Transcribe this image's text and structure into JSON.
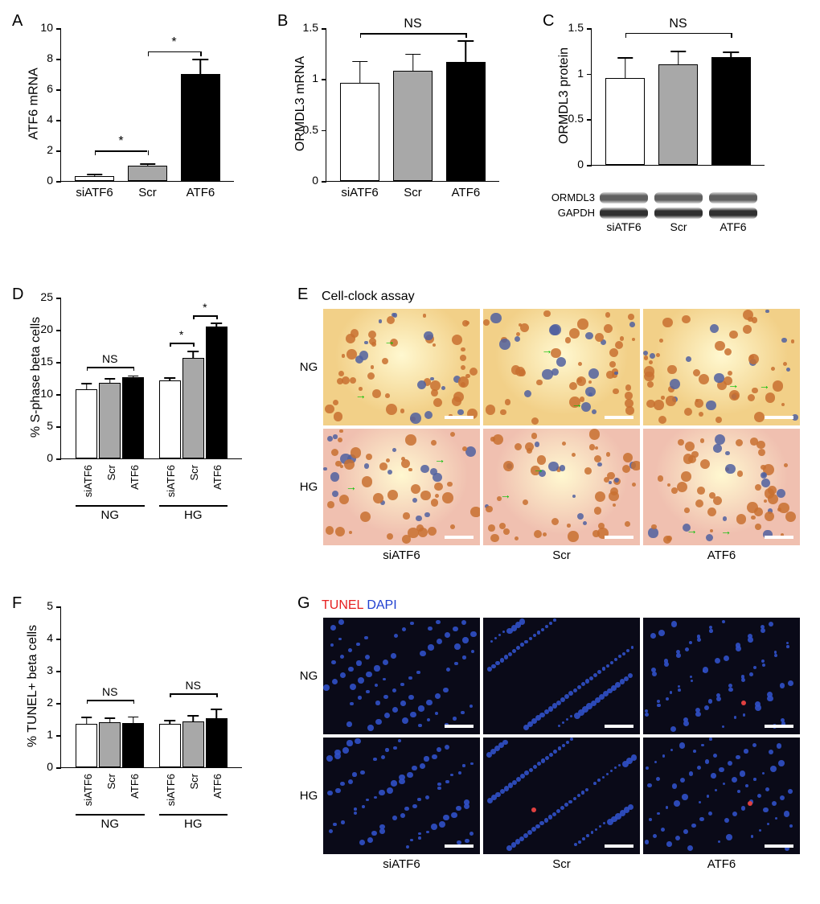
{
  "colors": {
    "bar_white": "#ffffff",
    "bar_gray": "#a8a8a8",
    "bar_black": "#000000",
    "axis": "#000000",
    "cell_bg_light": "#f2d088",
    "cell_bg_pink": "#f0c0b0",
    "cell_orange": "#c87030",
    "cell_blue": "#5060a0",
    "tunel_bg": "#0a0a18",
    "dapi": "#3050c8",
    "tunel_red": "#e04040"
  },
  "panelA": {
    "label": "A",
    "ylabel": "ATF6 mRNA",
    "ylim": [
      0,
      10
    ],
    "ytick_step": 2,
    "categories": [
      "siATF6",
      "Scr",
      "ATF6"
    ],
    "values": [
      0.3,
      1.0,
      7.0
    ],
    "errors": [
      0.15,
      0.15,
      1.0
    ],
    "bar_colors": [
      "#ffffff",
      "#a8a8a8",
      "#000000"
    ],
    "sig": [
      {
        "from": 0,
        "to": 1,
        "label": "*",
        "y": 2.0
      },
      {
        "from": 1,
        "to": 2,
        "label": "*",
        "y": 8.5
      }
    ]
  },
  "panelB": {
    "label": "B",
    "ylabel": "ORMDL3 mRNA",
    "ylim": [
      0,
      1.5
    ],
    "ytick_step": 0.5,
    "categories": [
      "siATF6",
      "Scr",
      "ATF6"
    ],
    "values": [
      0.96,
      1.08,
      1.17
    ],
    "errors": [
      0.22,
      0.17,
      0.21
    ],
    "bar_colors": [
      "#ffffff",
      "#a8a8a8",
      "#000000"
    ],
    "ns": {
      "from": 0,
      "to": 2,
      "label": "NS",
      "y": 1.45
    }
  },
  "panelC": {
    "label": "C",
    "ylabel": "ORMDL3 protein",
    "ylim": [
      0,
      1.5
    ],
    "ytick_step": 0.5,
    "categories": [
      "siATF6",
      "Scr",
      "ATF6"
    ],
    "values": [
      0.95,
      1.1,
      1.18
    ],
    "errors": [
      0.23,
      0.15,
      0.06
    ],
    "bar_colors": [
      "#ffffff",
      "#a8a8a8",
      "#000000"
    ],
    "ns": {
      "from": 0,
      "to": 2,
      "label": "NS",
      "y": 1.45
    },
    "blots": [
      {
        "label": "ORMDL3",
        "shade": "#606060"
      },
      {
        "label": "GAPDH",
        "shade": "#303030"
      }
    ]
  },
  "panelD": {
    "label": "D",
    "ylabel": "% S-phase beta cells",
    "ylim": [
      0,
      25
    ],
    "ytick_step": 5,
    "groups": [
      "NG",
      "HG"
    ],
    "categories": [
      "siATF6",
      "Scr",
      "ATF6"
    ],
    "values": [
      [
        10.8,
        11.7,
        12.6
      ],
      [
        12.1,
        15.6,
        20.5
      ]
    ],
    "errors": [
      [
        0.9,
        0.8,
        0.3
      ],
      [
        0.5,
        1.1,
        0.6
      ]
    ],
    "bar_colors": [
      "#ffffff",
      "#a8a8a8",
      "#000000"
    ],
    "sig": [
      {
        "group": 0,
        "from": 0,
        "to": 2,
        "label": "NS",
        "y": 14.2
      },
      {
        "group": 1,
        "from": 0,
        "to": 1,
        "label": "*",
        "y": 18.0
      },
      {
        "group": 1,
        "from": 1,
        "to": 2,
        "label": "*",
        "y": 22.2
      }
    ]
  },
  "panelE": {
    "label": "E",
    "title": "Cell-clock assay",
    "rows": [
      "NG",
      "HG"
    ],
    "cols": [
      "siATF6",
      "Scr",
      "ATF6"
    ]
  },
  "panelF": {
    "label": "F",
    "ylabel": "% TUNEL+ beta cells",
    "ylim": [
      0,
      5
    ],
    "ytick_step": 1,
    "groups": [
      "NG",
      "HG"
    ],
    "categories": [
      "siATF6",
      "Scr",
      "ATF6"
    ],
    "values": [
      [
        1.35,
        1.4,
        1.38
      ],
      [
        1.35,
        1.42,
        1.52
      ]
    ],
    "errors": [
      [
        0.22,
        0.15,
        0.2
      ],
      [
        0.12,
        0.2,
        0.3
      ]
    ],
    "bar_colors": [
      "#ffffff",
      "#a8a8a8",
      "#000000"
    ],
    "sig": [
      {
        "group": 0,
        "from": 0,
        "to": 2,
        "label": "NS",
        "y": 2.1
      },
      {
        "group": 1,
        "from": 0,
        "to": 2,
        "label": "NS",
        "y": 2.3
      }
    ]
  },
  "panelG": {
    "label": "G",
    "legend_red": "TUNEL",
    "legend_blue": "DAPI",
    "rows": [
      "NG",
      "HG"
    ],
    "cols": [
      "siATF6",
      "Scr",
      "ATF6"
    ]
  }
}
